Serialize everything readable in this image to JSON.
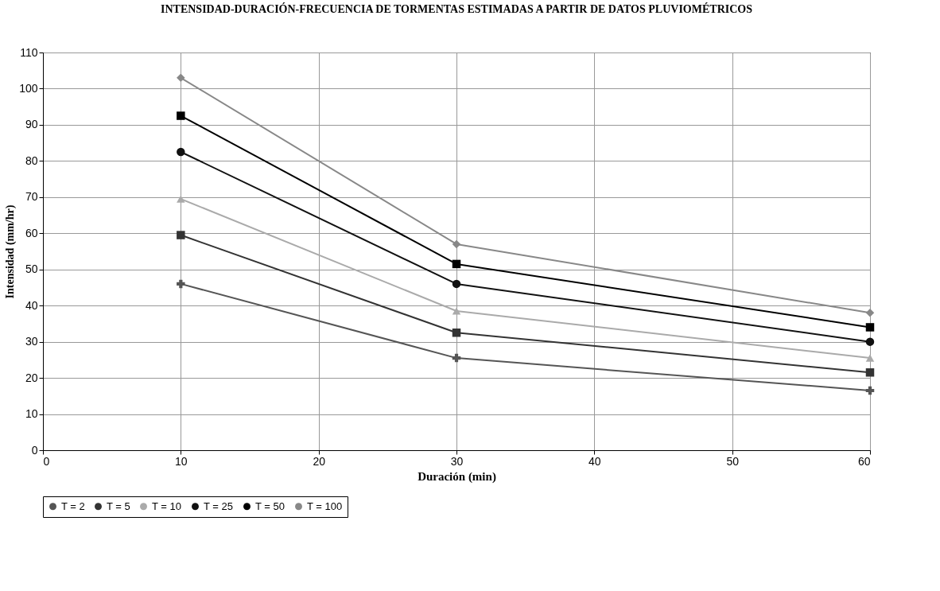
{
  "chart_data": {
    "type": "line",
    "title": "INTENSIDAD-DURACIÓN-FRECUENCIA DE TORMENTAS ESTIMADAS A PARTIR DE DATOS PLUVIOMÉTRICOS",
    "xlabel": "Duración (min)",
    "ylabel": "Intensidad (mm/hr)",
    "x": [
      10,
      30,
      60
    ],
    "xlim": [
      0,
      60
    ],
    "xticks": [
      0,
      10,
      20,
      30,
      40,
      50,
      60
    ],
    "ylim": [
      0,
      110
    ],
    "yticks": [
      0,
      10,
      20,
      30,
      40,
      50,
      60,
      70,
      80,
      90,
      100,
      110
    ],
    "grid": true,
    "legend": "bottom",
    "line_style": "solid",
    "series": [
      {
        "name": "T = 2",
        "color": "#555555",
        "marker": "cross",
        "values": [
          46,
          25.5,
          16.5
        ]
      },
      {
        "name": "T = 5",
        "color": "#333333",
        "marker": "square",
        "values": [
          59.5,
          32.5,
          21.5
        ]
      },
      {
        "name": "T = 10",
        "color": "#aaaaaa",
        "marker": "triangle",
        "values": [
          69.5,
          38.5,
          25.5
        ]
      },
      {
        "name": "T = 25",
        "color": "#111111",
        "marker": "circle",
        "values": [
          82.5,
          46,
          30
        ]
      },
      {
        "name": "T = 50",
        "color": "#000000",
        "marker": "square",
        "values": [
          92.5,
          51.5,
          34
        ]
      },
      {
        "name": "T = 100",
        "color": "#888888",
        "marker": "diamond",
        "values": [
          103,
          57,
          38
        ]
      }
    ]
  }
}
